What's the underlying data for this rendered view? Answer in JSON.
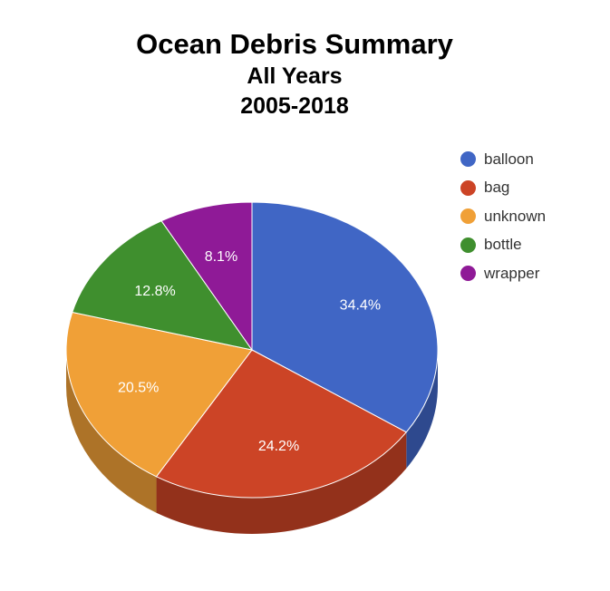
{
  "chart_data": {
    "type": "pie",
    "title": "Ocean Debris Summary",
    "subtitle_lines": [
      "All Years",
      "2005-2018"
    ],
    "legend_position": "right",
    "slices": [
      {
        "label": "balloon",
        "value": 34.4,
        "display": "34.4%",
        "color": "#4066C5"
      },
      {
        "label": "bag",
        "value": 24.2,
        "display": "24.2%",
        "color": "#CC4426"
      },
      {
        "label": "unknown",
        "value": 20.5,
        "display": "20.5%",
        "color": "#F0A037"
      },
      {
        "label": "bottle",
        "value": 12.8,
        "display": "12.8%",
        "color": "#3F8F2E"
      },
      {
        "label": "wrapper",
        "value": 8.1,
        "display": "8.1%",
        "color": "#8F1A97"
      }
    ]
  }
}
